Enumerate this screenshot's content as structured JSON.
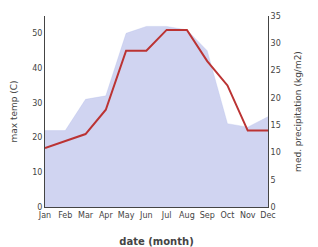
{
  "chart_data": {
    "type": "line",
    "categories": [
      "Jan",
      "Feb",
      "Mar",
      "Apr",
      "May",
      "Jun",
      "Jul",
      "Aug",
      "Sep",
      "Oct",
      "Nov",
      "Dec"
    ],
    "series": [
      {
        "type": "area",
        "color": "#b0b8e8",
        "values": [
          22,
          22,
          31,
          32,
          50,
          52,
          52,
          51,
          45,
          24,
          23,
          26
        ]
      },
      {
        "type": "line",
        "color": "#bb3333",
        "values": [
          17,
          19,
          21,
          28,
          45,
          45,
          51,
          51,
          42,
          35,
          22,
          22
        ]
      }
    ],
    "xlabel": "date (month)",
    "ylabel": "max temp (C)",
    "y2label": "med. precipitation (kg/m2)",
    "ylim": [
      0,
      55
    ],
    "yticks": [
      0,
      10,
      20,
      30,
      40,
      50
    ],
    "y2lim": [
      0,
      35
    ],
    "y2ticks": [
      0,
      5,
      10,
      15,
      20,
      25,
      30,
      35
    ],
    "grid": false
  }
}
